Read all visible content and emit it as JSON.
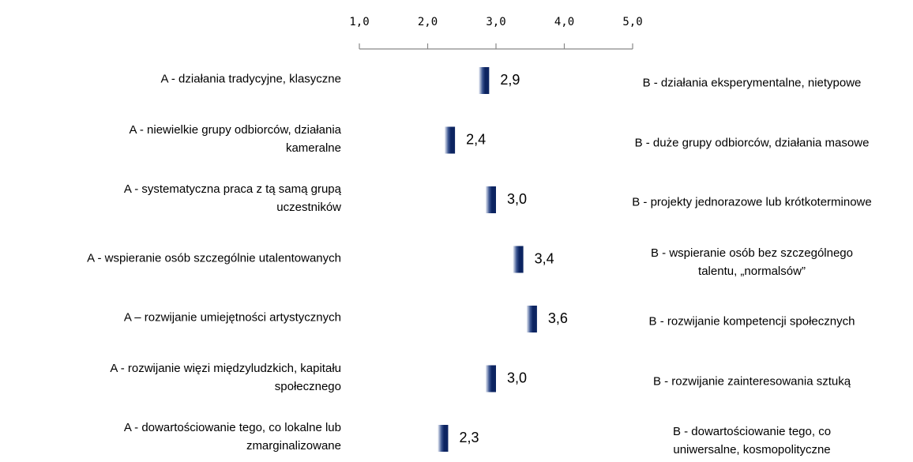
{
  "chart_data": {
    "type": "marker",
    "categories": [
      "A - działania tradycyjne, klasyczne",
      "A - niewielkie grupy odbiorców, działania\nkameralne",
      "A - systematyczna praca z tą samą grupą\nuczestników",
      "A - wspieranie osób szczególnie utalentowanych",
      "A – rozwijanie umiejętności artystycznych",
      "A - rozwijanie więzi międzyludzkich, kapitału\nspołecznego",
      "A - dowartościowanie tego, co lokalne lub\nzmarginalizowane"
    ],
    "right_labels": [
      "B - działania eksperymentalne, nietypowe",
      "B - duże grupy odbiorców, działania masowe",
      "B - projekty jednorazowe lub krótkoterminowe",
      "B - wspieranie osób bez szczególnego\ntalentu, „normalsów”",
      "B - rozwijanie kompetencji społecznych",
      "B - rozwijanie zainteresowania sztuką",
      "B - dowartościowanie tego, co\nuniwersalne, kosmopolityczne"
    ],
    "values": [
      2.9,
      2.4,
      3.0,
      3.4,
      3.6,
      3.0,
      2.3
    ],
    "value_labels": [
      "2,9",
      "2,4",
      "3,0",
      "3,4",
      "3,6",
      "3,0",
      "2,3"
    ],
    "color": "#0c2461",
    "xlim": [
      1,
      5
    ],
    "xticks": [
      {
        "value": 1,
        "label": "1,0"
      },
      {
        "value": 2,
        "label": "2,0"
      },
      {
        "value": 3,
        "label": "3,0"
      },
      {
        "value": 4,
        "label": "4,0"
      },
      {
        "value": 5,
        "label": "5,0"
      }
    ]
  }
}
